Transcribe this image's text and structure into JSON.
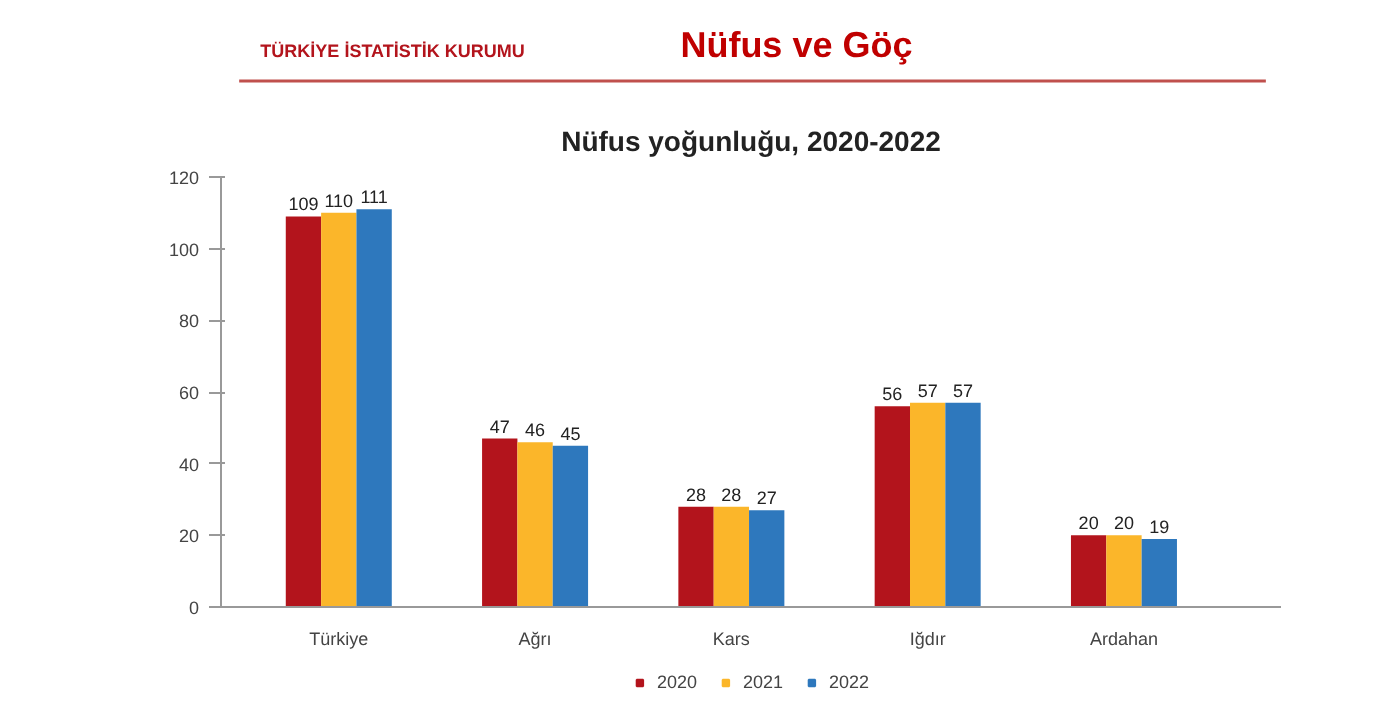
{
  "chart_data": {
    "type": "bar",
    "title": "Nüfus ve Göç",
    "subtitle": "Nüfus yoğunluğu, 2020-2022",
    "annotations": [
      "TÜRKİYE İSTATİSTİK KURUMU"
    ],
    "categories": [
      "Türkiye",
      "Ağrı",
      "Kars",
      "Iğdır",
      "Ardahan"
    ],
    "series": [
      {
        "name": "2020",
        "color": "#b3141c",
        "values": [
          109,
          47,
          28,
          56,
          20
        ]
      },
      {
        "name": "2021",
        "color": "#fbb62a",
        "values": [
          110,
          46,
          28,
          57,
          20
        ]
      },
      {
        "name": "2022",
        "color": "#2e78bd",
        "values": [
          111,
          45,
          27,
          57,
          19
        ]
      }
    ],
    "ylim": [
      0,
      120
    ],
    "yticks": [
      0,
      20,
      40,
      60,
      80,
      100,
      120
    ],
    "data_labels": true,
    "grid": false,
    "legend": "bottom"
  }
}
